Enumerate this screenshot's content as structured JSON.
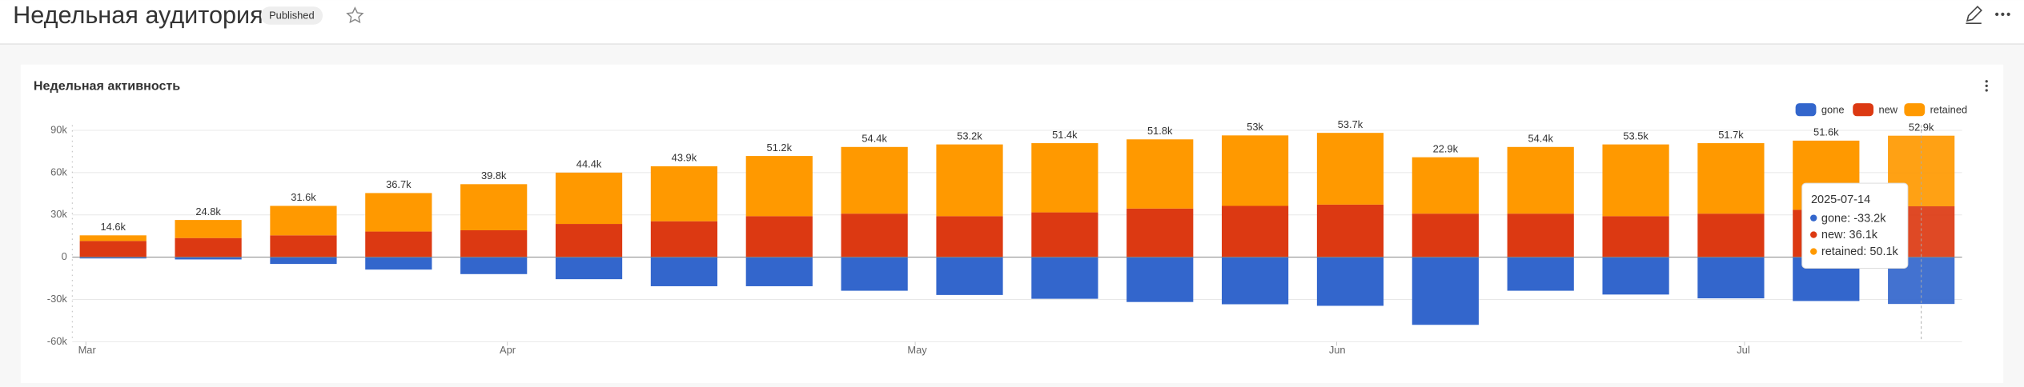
{
  "header": {
    "title": "Недельная аудитория",
    "badge": "Published"
  },
  "chart_data": {
    "type": "bar",
    "stacked": true,
    "title": "Недельная активность",
    "x": [
      "2025-03-03",
      "2025-03-10",
      "2025-03-17",
      "2025-03-24",
      "2025-03-31",
      "2025-04-07",
      "2025-04-14",
      "2025-04-21",
      "2025-04-28",
      "2025-05-05",
      "2025-05-12",
      "2025-05-19",
      "2025-05-26",
      "2025-06-02",
      "2025-06-09",
      "2025-06-16",
      "2025-06-23",
      "2025-06-30",
      "2025-07-07",
      "2025-07-14"
    ],
    "xlim": [
      "2025-02-28",
      "2025-07-17"
    ],
    "xticks": [
      {
        "value": "2025-03-01",
        "label": "Mar"
      },
      {
        "value": "2025-04-01",
        "label": "Apr"
      },
      {
        "value": "2025-05-01",
        "label": "May"
      },
      {
        "value": "2025-06-01",
        "label": "Jun"
      },
      {
        "value": "2025-07-01",
        "label": "Jul"
      }
    ],
    "ylim": [
      -60000,
      90000
    ],
    "yticks": [
      {
        "value": -60000,
        "label": "-60k"
      },
      {
        "value": -30000,
        "label": "-30k"
      },
      0,
      {
        "value": 30000,
        "label": "30k"
      },
      {
        "value": 60000,
        "label": "60k"
      },
      {
        "value": 90000,
        "label": "90k"
      }
    ],
    "grid": true,
    "legend": "top-right",
    "series": [
      {
        "name": "gone",
        "color": "#3366cc",
        "values": [
          -900,
          -1600,
          -4800,
          -8800,
          -12000,
          -15600,
          -20600,
          -20600,
          -23800,
          -26800,
          -29500,
          -31800,
          -33400,
          -34500,
          -48000,
          -23800,
          -26500,
          -29200,
          -31100,
          -33200
        ]
      },
      {
        "name": "new",
        "color": "#dc3912",
        "values": [
          11500,
          13600,
          15500,
          18200,
          19100,
          23600,
          25500,
          29100,
          30900,
          29100,
          31800,
          34500,
          36400,
          37300,
          30900,
          30900,
          29100,
          30900,
          33600,
          36100
        ]
      },
      {
        "name": "retained",
        "color": "#ff9900",
        "values": [
          4000,
          12800,
          20900,
          27300,
          32700,
          36400,
          39000,
          42700,
          47300,
          50900,
          49100,
          49100,
          50000,
          50900,
          40000,
          47300,
          50900,
          50000,
          49100,
          50100
        ]
      }
    ],
    "totals": {
      "values": [
        14600,
        24800,
        31600,
        36700,
        39800,
        44400,
        43900,
        51200,
        54400,
        53200,
        51400,
        51800,
        53000,
        53700,
        22900,
        54400,
        53500,
        51700,
        51600,
        52900
      ],
      "value_labels": [
        "14.6k",
        "24.8k",
        "31.6k",
        "36.7k",
        "39.8k",
        "44.4k",
        "43.9k",
        "51.2k",
        "54.4k",
        "53.2k",
        "51.4k",
        "51.8k",
        "53k",
        "53.7k",
        "22.9k",
        "54.4k",
        "53.5k",
        "51.7k",
        "51.6k",
        "52.9k"
      ]
    },
    "tooltip": {
      "title": "2025-07-14",
      "lines": [
        "gone: -33.2k",
        "new: 36.1k",
        "retained: 50.1k"
      ]
    }
  }
}
